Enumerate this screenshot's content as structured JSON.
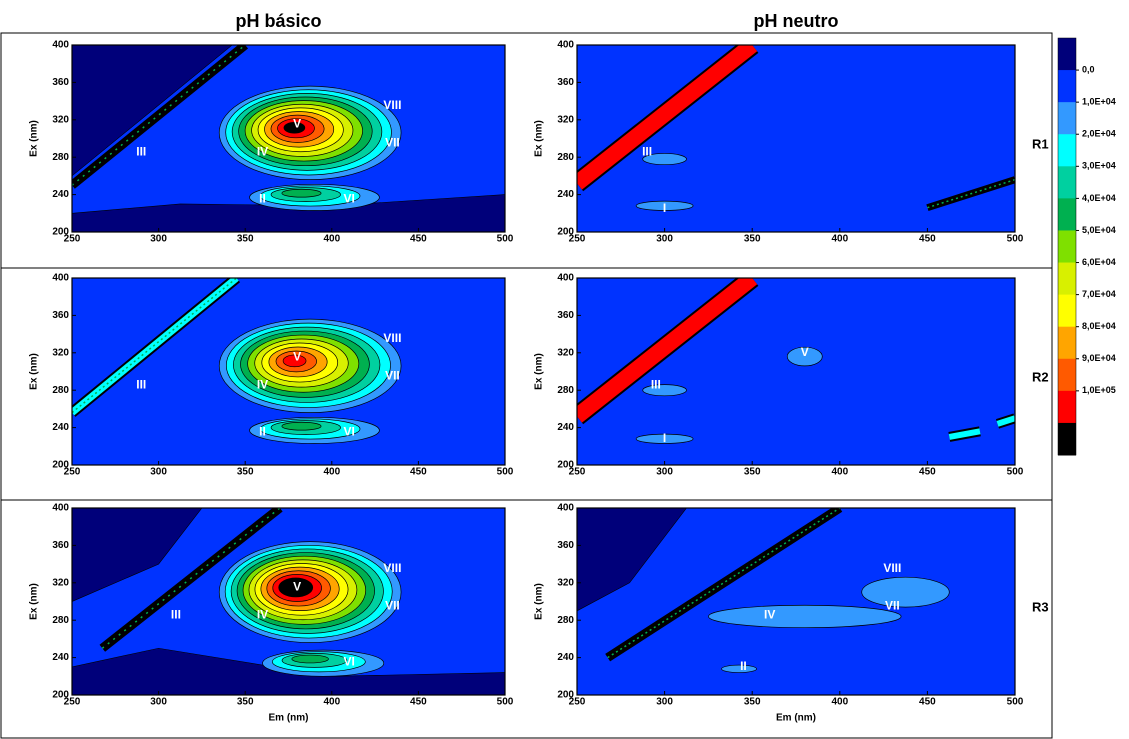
{
  "chart_data": [
    {
      "type": "contour",
      "title": "pH básico",
      "ylabel": "Ex (nm)",
      "xlim": [
        250,
        500
      ],
      "ylim": [
        200,
        400
      ],
      "xticks": [
        250,
        300,
        350,
        400,
        450,
        500
      ],
      "yticks": [
        200,
        240,
        280,
        320,
        360,
        400
      ],
      "annotations": [
        {
          "text": "III",
          "x": 290,
          "y": 285
        },
        {
          "text": "V",
          "x": 380,
          "y": 315
        },
        {
          "text": "VIII",
          "x": 435,
          "y": 335
        },
        {
          "text": "IV",
          "x": 360,
          "y": 285
        },
        {
          "text": "VII",
          "x": 435,
          "y": 295
        },
        {
          "text": "II",
          "x": 360,
          "y": 235
        },
        {
          "text": "VI",
          "x": 410,
          "y": 235
        }
      ]
    },
    {
      "type": "contour",
      "title": "pH neutro",
      "ylabel": "Ex (nm)",
      "row_label": "R1",
      "xlim": [
        250,
        500
      ],
      "ylim": [
        200,
        400
      ],
      "xticks": [
        250,
        300,
        350,
        400,
        450,
        500
      ],
      "yticks": [
        200,
        240,
        280,
        320,
        360,
        400
      ],
      "annotations": [
        {
          "text": "III",
          "x": 290,
          "y": 285
        },
        {
          "text": "I",
          "x": 300,
          "y": 225
        }
      ]
    },
    {
      "type": "contour",
      "ylabel": "Ex (nm)",
      "xlim": [
        250,
        500
      ],
      "ylim": [
        200,
        400
      ],
      "xticks": [
        250,
        300,
        350,
        400,
        450,
        500
      ],
      "yticks": [
        200,
        240,
        280,
        320,
        360,
        400
      ],
      "annotations": [
        {
          "text": "III",
          "x": 290,
          "y": 285
        },
        {
          "text": "V",
          "x": 380,
          "y": 315
        },
        {
          "text": "VIII",
          "x": 435,
          "y": 335
        },
        {
          "text": "IV",
          "x": 360,
          "y": 285
        },
        {
          "text": "VII",
          "x": 435,
          "y": 295
        },
        {
          "text": "II",
          "x": 360,
          "y": 235
        },
        {
          "text": "VI",
          "x": 410,
          "y": 235
        }
      ]
    },
    {
      "type": "contour",
      "ylabel": "Ex (nm)",
      "row_label": "R2",
      "xlim": [
        250,
        500
      ],
      "ylim": [
        200,
        400
      ],
      "xticks": [
        250,
        300,
        350,
        400,
        450,
        500
      ],
      "yticks": [
        200,
        240,
        280,
        320,
        360,
        400
      ],
      "annotations": [
        {
          "text": "V",
          "x": 380,
          "y": 320
        },
        {
          "text": "III",
          "x": 295,
          "y": 285
        },
        {
          "text": "I",
          "x": 300,
          "y": 228
        }
      ]
    },
    {
      "type": "contour",
      "ylabel": "Ex (nm)",
      "xlabel": "Em (nm)",
      "xlim": [
        250,
        500
      ],
      "ylim": [
        200,
        400
      ],
      "xticks": [
        250,
        300,
        350,
        400,
        450,
        500
      ],
      "yticks": [
        200,
        240,
        280,
        320,
        360,
        400
      ],
      "annotations": [
        {
          "text": "III",
          "x": 310,
          "y": 285
        },
        {
          "text": "V",
          "x": 380,
          "y": 315
        },
        {
          "text": "VIII",
          "x": 435,
          "y": 335
        },
        {
          "text": "IV",
          "x": 360,
          "y": 285
        },
        {
          "text": "VII",
          "x": 435,
          "y": 295
        },
        {
          "text": "VI",
          "x": 410,
          "y": 235
        }
      ]
    },
    {
      "type": "contour",
      "ylabel": "Ex (nm)",
      "xlabel": "Em (nm)",
      "row_label": "R3",
      "xlim": [
        250,
        500
      ],
      "ylim": [
        200,
        400
      ],
      "xticks": [
        250,
        300,
        350,
        400,
        450,
        500
      ],
      "yticks": [
        200,
        240,
        280,
        320,
        360,
        400
      ],
      "annotations": [
        {
          "text": "VIII",
          "x": 430,
          "y": 335
        },
        {
          "text": "IV",
          "x": 360,
          "y": 285
        },
        {
          "text": "VII",
          "x": 430,
          "y": 295
        },
        {
          "text": "II",
          "x": 345,
          "y": 230
        }
      ]
    }
  ],
  "colorbar": {
    "clim": [
      -10000,
      120000
    ],
    "colors": [
      "#00007a",
      "#0033ff",
      "#3399ff",
      "#00ffff",
      "#00d0a0",
      "#00b050",
      "#7fe000",
      "#d8f000",
      "#ffff00",
      "#ffa500",
      "#ff5a00",
      "#ff0000",
      "#000000"
    ],
    "ticks": [
      {
        "value": 0,
        "label": "0,0"
      },
      {
        "value": 10000,
        "label": "1,0E+04"
      },
      {
        "value": 20000,
        "label": "2,0E+04"
      },
      {
        "value": 30000,
        "label": "3,0E+04"
      },
      {
        "value": 40000,
        "label": "4,0E+04"
      },
      {
        "value": 50000,
        "label": "5,0E+04"
      },
      {
        "value": 60000,
        "label": "6,0E+04"
      },
      {
        "value": 70000,
        "label": "7,0E+04"
      },
      {
        "value": 80000,
        "label": "8,0E+04"
      },
      {
        "value": 90000,
        "label": "9,0E+04"
      },
      {
        "value": 100000,
        "label": "1,0E+05"
      }
    ]
  }
}
